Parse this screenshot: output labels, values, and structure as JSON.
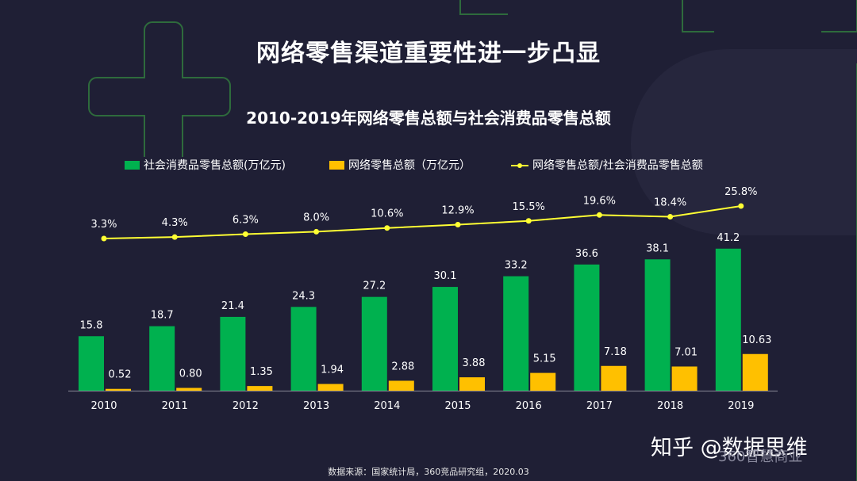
{
  "title": "网络零售渠道重要性进一步凸显",
  "chart_data": {
    "type": "bar",
    "title": "2010-2019年网络零售总额与社会消费品零售总额",
    "categories": [
      "2010",
      "2011",
      "2012",
      "2013",
      "2014",
      "2015",
      "2016",
      "2017",
      "2018",
      "2019"
    ],
    "series": [
      {
        "name": "社会消费品零售总额(万亿元)",
        "type": "bar",
        "color": "#00b14f",
        "values": [
          15.8,
          18.7,
          21.4,
          24.3,
          27.2,
          30.1,
          33.2,
          36.6,
          38.1,
          41.2
        ],
        "labels": [
          "15.8",
          "18.7",
          "21.4",
          "24.3",
          "27.2",
          "30.1",
          "33.2",
          "36.6",
          "38.1",
          "41.2"
        ]
      },
      {
        "name": "网络零售总额（万亿元）",
        "type": "bar",
        "color": "#ffc000",
        "values": [
          0.52,
          0.8,
          1.35,
          1.94,
          2.88,
          3.88,
          5.15,
          7.18,
          7.01,
          10.63
        ],
        "labels": [
          "0.52",
          "0.80",
          "1.35",
          "1.94",
          "2.88",
          "3.88",
          "5.15",
          "7.18",
          "7.01",
          "10.63"
        ]
      },
      {
        "name": "网络零售总额/社会消费品零售总额",
        "type": "line",
        "color": "#ffff33",
        "values": [
          3.3,
          4.3,
          6.3,
          8.0,
          10.6,
          12.9,
          15.5,
          19.6,
          18.4,
          25.8
        ],
        "labels": [
          "3.3%",
          "4.3%",
          "6.3%",
          "8.0%",
          "10.6%",
          "12.9%",
          "15.5%",
          "19.6%",
          "18.4%",
          "25.8%"
        ]
      }
    ],
    "ylim": [
      0,
      42
    ],
    "grid": false,
    "legend_position": "top"
  },
  "source": "数据来源：国家统计局，360竞品研究组，2020.03",
  "watermark": "知乎 @数据思维",
  "brand": "360智慧商业"
}
